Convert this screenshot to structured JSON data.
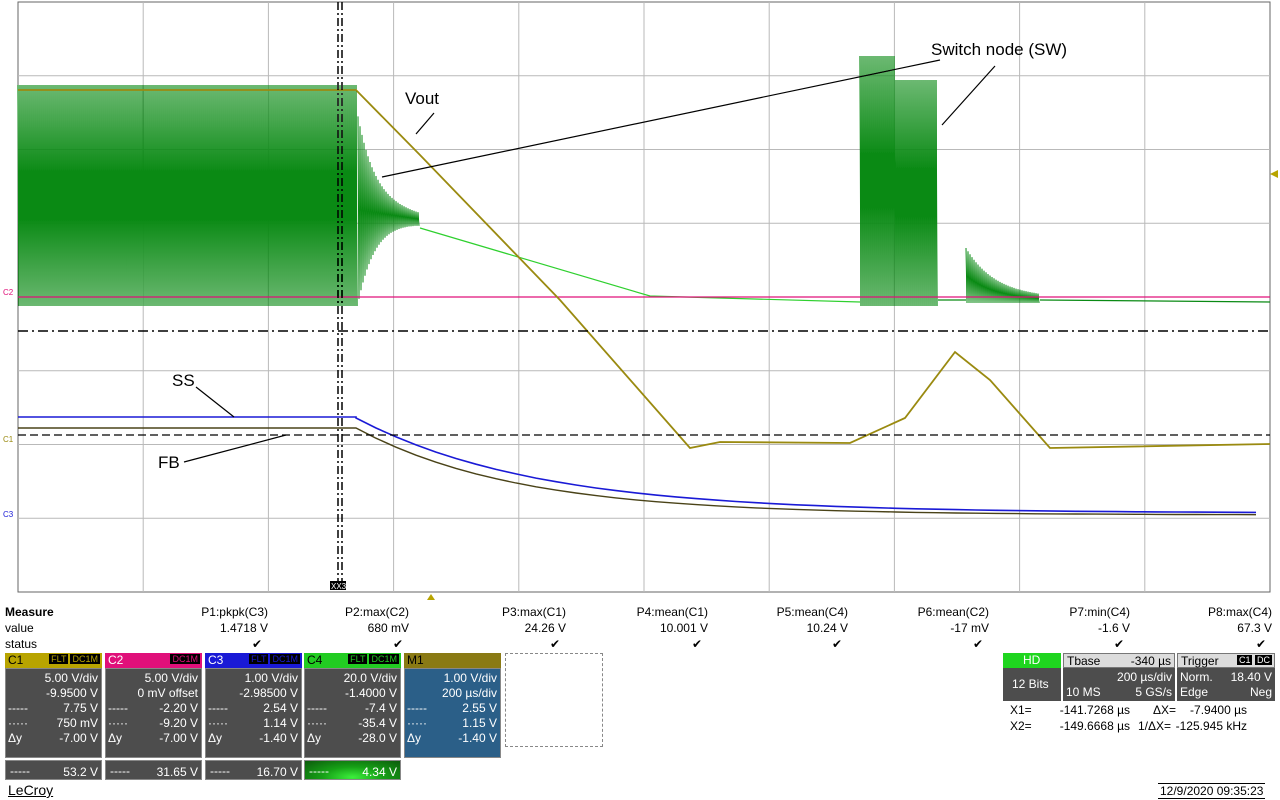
{
  "annotations": {
    "vout": "Vout",
    "sw": "Switch node (SW)",
    "ss": "SS",
    "fb": "FB"
  },
  "markers": {
    "c2": "C2",
    "c1": "C1",
    "c3": "C3",
    "cursor_tag": "XX3"
  },
  "measure": {
    "title": "Measure",
    "value_label": "value",
    "status_label": "status",
    "status_glyph": "✔",
    "params": [
      {
        "name": "P1:pkpk(C3)",
        "value": "1.4718 V"
      },
      {
        "name": "P2:max(C2)",
        "value": "680 mV"
      },
      {
        "name": "P3:max(C1)",
        "value": "24.26 V"
      },
      {
        "name": "P4:mean(C1)",
        "value": "10.001 V"
      },
      {
        "name": "P5:mean(C4)",
        "value": "10.24 V"
      },
      {
        "name": "P6:mean(C2)",
        "value": "-17 mV"
      },
      {
        "name": "P7:min(C4)",
        "value": "-1.6 V"
      },
      {
        "name": "P8:max(C4)",
        "value": "67.3 V"
      }
    ]
  },
  "channels": [
    {
      "name": "C1",
      "tags": [
        "FLT",
        "DC1M"
      ],
      "color": "#b8a400",
      "lines": [
        [
          "",
          "5.00 V/div"
        ],
        [
          "",
          "-9.9500 V"
        ],
        [
          "-----",
          "7.75 V"
        ],
        [
          "·····",
          "750 mV"
        ],
        [
          "Δy",
          "-7.00 V"
        ]
      ],
      "foot": [
        "-----",
        "53.2 V"
      ]
    },
    {
      "name": "C2",
      "tags": [
        "DC1M"
      ],
      "color": "#e0107a",
      "lines": [
        [
          "",
          "5.00 V/div"
        ],
        [
          "",
          "0 mV offset"
        ],
        [
          "-----",
          "-2.20 V"
        ],
        [
          "·····",
          "-9.20 V"
        ],
        [
          "Δy",
          "-7.00 V"
        ]
      ],
      "foot": [
        "-----",
        "31.65 V"
      ]
    },
    {
      "name": "C3",
      "tags": [
        "FLT",
        "DC1M"
      ],
      "color": "#1a1ad6",
      "lines": [
        [
          "",
          "1.00 V/div"
        ],
        [
          "",
          "-2.98500 V"
        ],
        [
          "-----",
          "2.54 V"
        ],
        [
          "·····",
          "1.14 V"
        ],
        [
          "Δy",
          "-1.40 V"
        ]
      ],
      "foot": [
        "-----",
        "16.70 V"
      ]
    },
    {
      "name": "C4",
      "tags": [
        "FLT",
        "DC1M"
      ],
      "color": "#22cc22",
      "lines": [
        [
          "",
          "20.0 V/div"
        ],
        [
          "",
          "-1.4000 V"
        ],
        [
          "-----",
          "-7.4 V"
        ],
        [
          "·····",
          "-35.4 V"
        ],
        [
          "Δy",
          "-28.0 V"
        ]
      ],
      "foot": [
        "-----",
        "4.34 V"
      ]
    },
    {
      "name": "M1",
      "tags": [],
      "color": "#8a7a14",
      "lines": [
        [
          "",
          "1.00 V/div"
        ],
        [
          "",
          "200 µs/div"
        ],
        [
          "-----",
          "2.55 V"
        ],
        [
          "·····",
          "1.15 V"
        ],
        [
          "Δy",
          "-1.40 V"
        ]
      ],
      "foot": null
    }
  ],
  "hd": {
    "label": "HD",
    "bits": "12 Bits"
  },
  "timebase": {
    "label": "Tbase",
    "delay": "-340 µs",
    "div": "200 µs/div",
    "samples": "10 MS",
    "rate": "5 GS/s"
  },
  "trigger": {
    "label": "Trigger",
    "source": "C1",
    "coupling": "DC",
    "mode": "Norm.",
    "level": "18.40 V",
    "type": "Edge",
    "slope": "Neg"
  },
  "cursors": {
    "x1_label": "X1=",
    "x1": "-141.7268 µs",
    "dx_label": "ΔX=",
    "dx": "-7.9400 µs",
    "x2_label": "X2=",
    "x2": "-149.6668 µs",
    "inv_label": "1/ΔX=",
    "inv": "-125.945 kHz"
  },
  "brand": "LeCroy",
  "datetime": "12/9/2020 09:35:23",
  "colors": {
    "c1": "#b8a400",
    "c2": "#e0107a",
    "c3": "#1a1ad6",
    "c4": "#22cc22",
    "sw": "#0a8a14",
    "vout": "#9a8a10"
  }
}
